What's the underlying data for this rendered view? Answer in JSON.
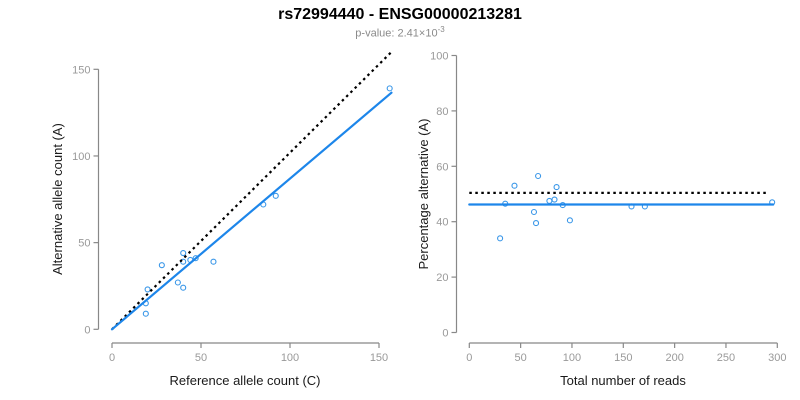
{
  "header": {
    "title": "rs72994440 - ENSG00000213281",
    "subtitle_prefix": "p-value: 2.41×10",
    "subtitle_exponent": "-3"
  },
  "colors": {
    "point_stroke": "#3a97e8",
    "fit_line": "#1d86ea",
    "null_line": "#000000",
    "axis_line": "#888888",
    "tick_text": "#999999",
    "label_text": "#1a1a1a"
  },
  "chart_data": [
    {
      "id": "allele-counts",
      "type": "scatter",
      "xlabel": "Reference allele count (C)",
      "ylabel": "Alternative allele count (A)",
      "xlim": [
        0,
        150
      ],
      "ylim": [
        0,
        150
      ],
      "xticks": [
        0,
        50,
        100,
        150
      ],
      "yticks": [
        0,
        50,
        100,
        150
      ],
      "grid": false,
      "legend": "none",
      "points": [
        [
          19,
          9
        ],
        [
          19,
          15
        ],
        [
          20,
          23
        ],
        [
          28,
          37
        ],
        [
          37,
          27
        ],
        [
          40,
          24
        ],
        [
          40,
          39
        ],
        [
          40,
          44
        ],
        [
          44,
          40
        ],
        [
          47,
          41
        ],
        [
          57,
          39
        ],
        [
          85,
          72
        ],
        [
          92,
          77
        ],
        [
          156,
          139
        ]
      ],
      "lines": [
        {
          "name": "identity-line",
          "style": "dotted",
          "role": "null-expectation",
          "from": [
            0,
            0
          ],
          "to": [
            157,
            160
          ]
        },
        {
          "name": "fit-line",
          "style": "solid",
          "role": "fitted-slope",
          "from": [
            0,
            0
          ],
          "to": [
            157,
            136.5
          ]
        }
      ]
    },
    {
      "id": "percentage-vs-reads",
      "type": "scatter",
      "xlabel": "Total number of reads",
      "ylabel": "Percentage alternative (A)",
      "xlim": [
        0,
        300
      ],
      "ylim": [
        0,
        100
      ],
      "xticks": [
        0,
        50,
        100,
        150,
        200,
        250,
        300
      ],
      "yticks": [
        0,
        20,
        40,
        60,
        80,
        100
      ],
      "grid": false,
      "legend": "none",
      "points": [
        [
          30,
          34
        ],
        [
          35,
          46.5
        ],
        [
          44,
          53
        ],
        [
          63,
          43.5
        ],
        [
          65,
          39.5
        ],
        [
          67,
          56.5
        ],
        [
          78,
          47.5
        ],
        [
          83,
          48
        ],
        [
          85,
          52.5
        ],
        [
          91,
          46
        ],
        [
          98,
          40.5
        ],
        [
          158,
          45.5
        ],
        [
          171,
          45.5
        ],
        [
          295,
          47
        ]
      ],
      "lines": [
        {
          "name": "null-percentage-line",
          "style": "dotted",
          "role": "null-expectation",
          "from": [
            0,
            50.4
          ],
          "to": [
            292,
            50.4
          ]
        },
        {
          "name": "fit-percentage-line",
          "style": "solid",
          "role": "fitted-percentage",
          "from": [
            0,
            46.2
          ],
          "to": [
            296,
            46.2
          ]
        }
      ]
    }
  ]
}
